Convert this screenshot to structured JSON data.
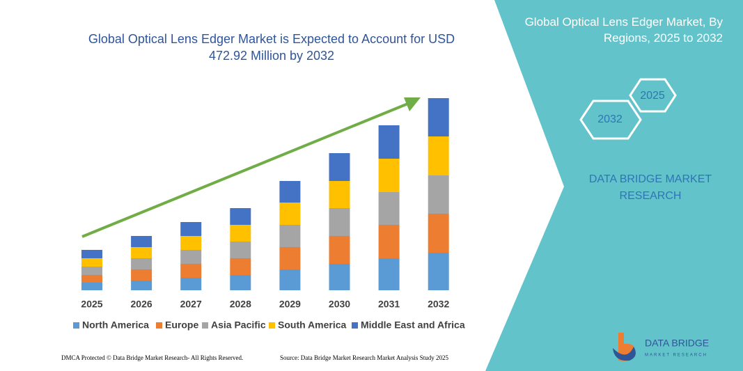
{
  "chart_data": {
    "type": "bar",
    "stacked": true,
    "title": "Global Optical Lens Edger Market is Expected to Account for USD 472.92 Million by 2032",
    "categories": [
      "2025",
      "2026",
      "2027",
      "2028",
      "2029",
      "2030",
      "2031",
      "2032"
    ],
    "series": [
      {
        "name": "North America",
        "color": "#5b9bd5",
        "values": [
          11,
          14,
          18,
          22,
          30,
          38,
          46,
          54
        ]
      },
      {
        "name": "Europe",
        "color": "#ed7d31",
        "values": [
          11,
          16,
          20,
          24,
          32,
          40,
          48,
          56
        ]
      },
      {
        "name": "Asia Pacific",
        "color": "#a5a5a5",
        "values": [
          12,
          16,
          20,
          24,
          32,
          40,
          47,
          55
        ]
      },
      {
        "name": "South America",
        "color": "#ffc000",
        "values": [
          12,
          16,
          20,
          24,
          32,
          39,
          48,
          56
        ]
      },
      {
        "name": "Middle East and Africa",
        "color": "#4472c4",
        "values": [
          12,
          16,
          20,
          24,
          31,
          40,
          48,
          55
        ]
      }
    ]
  },
  "panel": {
    "title": "Global Optical Lens Edger Market, By Regions, 2025 to 2032",
    "hexagons": [
      "2025",
      "2032"
    ],
    "brand": "DATA BRIDGE MARKET RESEARCH"
  },
  "logo": {
    "name": "DATA BRIDGE",
    "tagline": "MARKET RESEARCH"
  },
  "footer": {
    "left": "DMCA Protected © Data Bridge Market Research- All Rights Reserved.",
    "right": "Source: Data Bridge Market Research Market Analysis Study 2025"
  }
}
